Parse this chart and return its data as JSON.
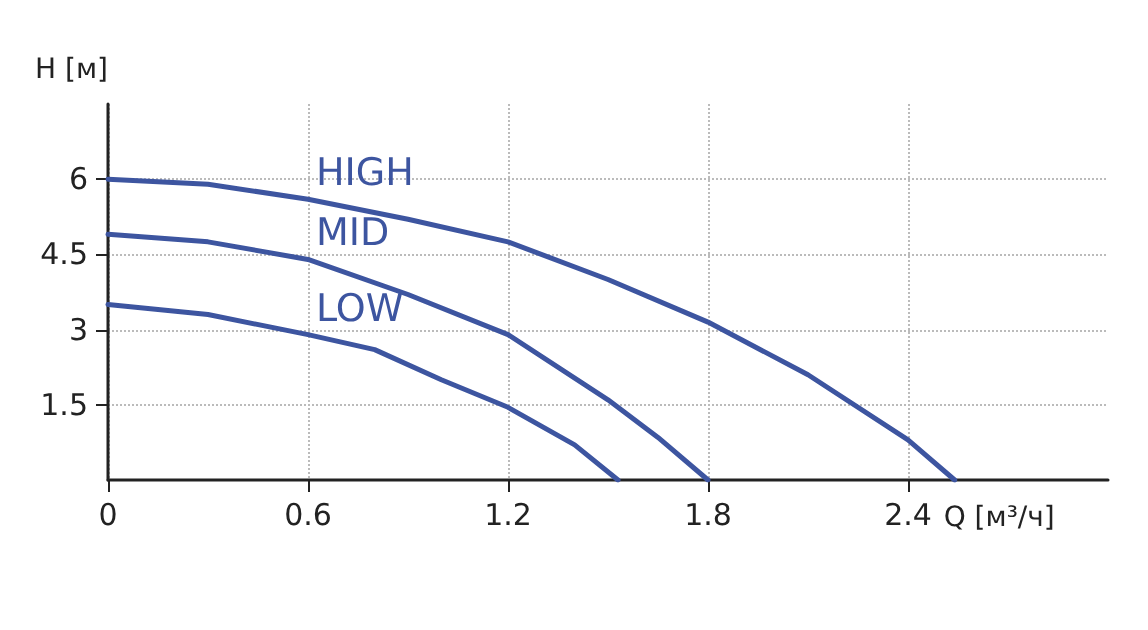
{
  "chart_data": {
    "type": "line",
    "xlabel": "Q [м³/ч]",
    "ylabel": "H [м]",
    "xlim": [
      0,
      3
    ],
    "xticks": [
      0,
      0.6,
      1.2,
      1.8,
      2.4
    ],
    "ylim": [
      0,
      7.5
    ],
    "yticks": [
      1.5,
      3,
      4.5,
      6
    ],
    "grid": true,
    "legend": false,
    "marker": "none",
    "line_style": "solid",
    "series": [
      {
        "name": "HIGH",
        "color": "#3d55a0",
        "x": [
          0,
          0.3,
          0.6,
          0.9,
          1.2,
          1.5,
          1.8,
          2.1,
          2.4,
          2.54
        ],
        "values": [
          6,
          5.9,
          5.6,
          5.2,
          4.75,
          4.0,
          3.15,
          2.1,
          0.8,
          0
        ]
      },
      {
        "name": "MID",
        "color": "#3d55a0",
        "x": [
          0,
          0.3,
          0.6,
          0.9,
          1.2,
          1.5,
          1.65,
          1.8
        ],
        "values": [
          4.9,
          4.75,
          4.4,
          3.7,
          2.9,
          1.6,
          0.85,
          0
        ]
      },
      {
        "name": "LOW",
        "color": "#3d55a0",
        "x": [
          0,
          0.3,
          0.6,
          0.8,
          1.0,
          1.2,
          1.4,
          1.53
        ],
        "values": [
          3.5,
          3.3,
          2.9,
          2.6,
          2.0,
          1.45,
          0.7,
          0
        ]
      }
    ]
  }
}
